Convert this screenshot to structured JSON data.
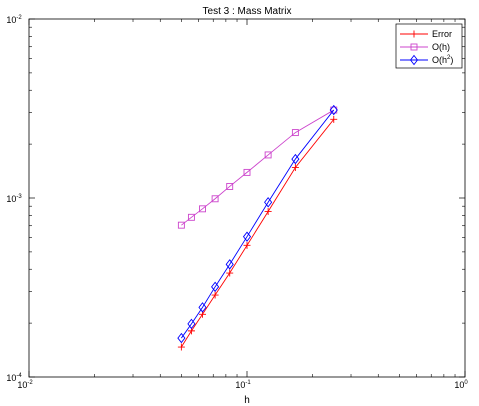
{
  "chart_data": {
    "type": "line",
    "title": "Test 3 : Mass Matrix",
    "xlabel": "h",
    "ylabel": "",
    "xscale": "log",
    "yscale": "log",
    "xlim": [
      0.01,
      1
    ],
    "ylim": [
      0.0001,
      0.01
    ],
    "xticks": [
      {
        "value": 0.01,
        "base": "10",
        "exp": "-2"
      },
      {
        "value": 0.1,
        "base": "10",
        "exp": "-1"
      },
      {
        "value": 1,
        "base": "10",
        "exp": "0"
      }
    ],
    "yticks": [
      {
        "value": 0.0001,
        "base": "10",
        "exp": "-4"
      },
      {
        "value": 0.001,
        "base": "10",
        "exp": "-3"
      },
      {
        "value": 0.01,
        "base": "10",
        "exp": "-2"
      }
    ],
    "grid": false,
    "legend_position": "top-right",
    "series": [
      {
        "name": "Error",
        "color": "#ff0000",
        "marker": "plus",
        "x": [
          0.05,
          0.0556,
          0.0625,
          0.0714,
          0.0833,
          0.1,
          0.125,
          0.1667,
          0.25
        ],
        "y": [
          0.000147,
          0.000181,
          0.000224,
          0.000287,
          0.000381,
          0.000544,
          0.00084,
          0.00148,
          0.00275
        ]
      },
      {
        "name": "O(h)",
        "color": "#cc44cc",
        "marker": "square",
        "x": [
          0.05,
          0.0556,
          0.0625,
          0.0714,
          0.0833,
          0.1,
          0.125,
          0.1667,
          0.25
        ],
        "y": [
          0.000705,
          0.00078,
          0.00087,
          0.00099,
          0.00116,
          0.00139,
          0.00174,
          0.00232,
          0.0031
        ]
      },
      {
        "name": "O(h²)",
        "label_base": "O(h",
        "label_exp": "2",
        "label_tail": ")",
        "color": "#0000ff",
        "marker": "diamond",
        "x": [
          0.05,
          0.0556,
          0.0625,
          0.0714,
          0.0833,
          0.1,
          0.125,
          0.1667,
          0.25
        ],
        "y": [
          0.000165,
          0.000198,
          0.000245,
          0.000319,
          0.000426,
          0.000608,
          0.000947,
          0.00165,
          0.0031
        ]
      }
    ]
  }
}
